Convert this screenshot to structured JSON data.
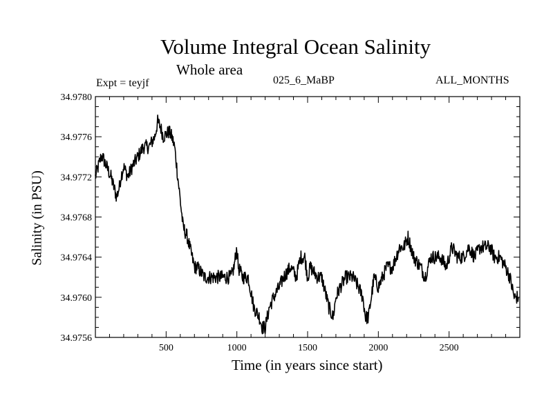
{
  "chart_data": {
    "type": "line",
    "title": "Volume Integral Ocean Salinity",
    "subtitle": "Whole area",
    "experiment": "Expt = teyjf",
    "run_label": "025_6_MaBP",
    "months_label": "ALL_MONTHS",
    "xlabel": "Time (in years since start)",
    "ylabel": "Salinity (in PSU)",
    "xlim": [
      0,
      3000
    ],
    "ylim": [
      34.9756,
      34.978
    ],
    "xticks": [
      500,
      1000,
      1500,
      2000,
      2500
    ],
    "xtick_labels": [
      "500",
      "1000",
      "1500",
      "2000",
      "2500"
    ],
    "yticks": [
      34.978,
      34.9776,
      34.9772,
      34.9768,
      34.9764,
      34.976,
      34.9756
    ],
    "ytick_labels": [
      "34.9780",
      "34.9776",
      "34.9772",
      "34.9768",
      "34.9764",
      "34.9760",
      "34.9756"
    ],
    "grid": false,
    "series": [
      {
        "name": "Salinity",
        "color": "#000000",
        "x": [
          0,
          40,
          50,
          80,
          110,
          130,
          150,
          170,
          180,
          200,
          230,
          260,
          300,
          340,
          380,
          420,
          440,
          460,
          480,
          520,
          540,
          560,
          590,
          620,
          650,
          700,
          720,
          770,
          800,
          820,
          850,
          900,
          930,
          960,
          980,
          1000,
          1010,
          1040,
          1080,
          1120,
          1160,
          1180,
          1200,
          1230,
          1260,
          1300,
          1330,
          1380,
          1420,
          1450,
          1480,
          1500,
          1520,
          1570,
          1600,
          1650,
          1680,
          1700,
          1730,
          1770,
          1820,
          1860,
          1890,
          1910,
          1930,
          1950,
          1970,
          2000,
          2030,
          2060,
          2100,
          2150,
          2180,
          2210,
          2250,
          2300,
          2330,
          2370,
          2400,
          2440,
          2480,
          2520,
          2560,
          2600,
          2640,
          2680,
          2720,
          2760,
          2790,
          2820,
          2860,
          2900,
          2930,
          2960,
          2990
        ],
        "y": [
          34.9772,
          34.9774,
          34.9774,
          34.9773,
          34.9772,
          34.9771,
          34.977,
          34.9771,
          34.9772,
          34.9773,
          34.9772,
          34.9773,
          34.9774,
          34.9775,
          34.9775,
          34.9776,
          34.97775,
          34.9777,
          34.9776,
          34.97765,
          34.9776,
          34.9775,
          34.9771,
          34.9767,
          34.9766,
          34.9763,
          34.9763,
          34.9762,
          34.9762,
          34.9762,
          34.9762,
          34.9762,
          34.9762,
          34.9762,
          34.9763,
          34.9765,
          34.9763,
          34.9762,
          34.9762,
          34.9759,
          34.9758,
          34.9757,
          34.9757,
          34.9759,
          34.976,
          34.9761,
          34.9762,
          34.9763,
          34.9762,
          34.9764,
          34.9764,
          34.9762,
          34.9763,
          34.9762,
          34.9762,
          34.9759,
          34.9758,
          34.976,
          34.9761,
          34.9762,
          34.9762,
          34.9761,
          34.976,
          34.9758,
          34.9758,
          34.976,
          34.9762,
          34.9761,
          34.9762,
          34.9763,
          34.9763,
          34.9765,
          34.9765,
          34.9766,
          34.9764,
          34.9763,
          34.9762,
          34.9764,
          34.9764,
          34.9764,
          34.9763,
          34.9765,
          34.9764,
          34.9764,
          34.9765,
          34.9764,
          34.9765,
          34.9765,
          34.9765,
          34.9764,
          34.9764,
          34.9763,
          34.9762,
          34.976,
          34.976
        ]
      }
    ]
  }
}
